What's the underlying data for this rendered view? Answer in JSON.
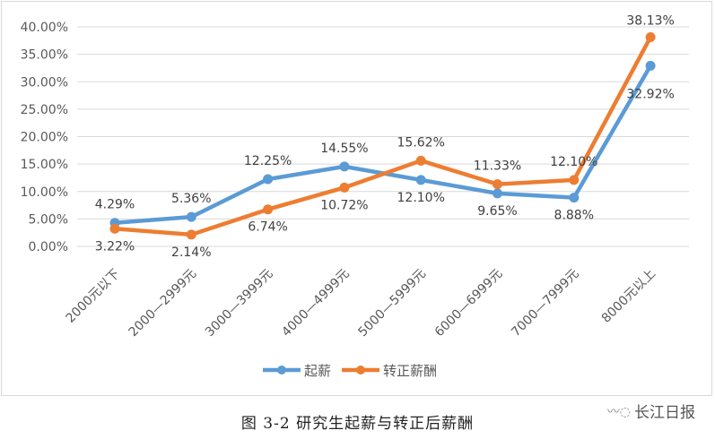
{
  "chart_data": {
    "type": "line",
    "categories": [
      "2000元以下",
      "2000—2999元",
      "3000—3999元",
      "4000—4999元",
      "5000—5999元",
      "6000—6999元",
      "7000—7999元",
      "8000元以上"
    ],
    "series": [
      {
        "name": "起薪",
        "color": "#5b9bd5",
        "values": [
          4.29,
          5.36,
          12.25,
          14.55,
          12.1,
          9.65,
          8.88,
          32.92
        ],
        "labels": [
          "4.29%",
          "5.36%",
          "12.25%",
          "14.55%",
          "12.10%",
          "9.65%",
          "8.88%",
          "32.92%"
        ]
      },
      {
        "name": "转正薪酬",
        "color": "#ed7d31",
        "values": [
          3.22,
          2.14,
          6.74,
          10.72,
          15.62,
          11.33,
          12.1,
          38.13
        ],
        "labels": [
          "3.22%",
          "2.14%",
          "6.74%",
          "10.72%",
          "15.62%",
          "11.33%",
          "12.10%",
          "38.13%"
        ]
      }
    ],
    "yticks": [
      "0.00%",
      "5.00%",
      "10.00%",
      "15.00%",
      "20.00%",
      "25.00%",
      "30.00%",
      "35.00%",
      "40.00%"
    ],
    "ylim": [
      0,
      40
    ],
    "grid": true,
    "legend": "bottom"
  },
  "caption": "图 3-2   研究生起薪与转正后薪酬",
  "watermark": "长江日报"
}
